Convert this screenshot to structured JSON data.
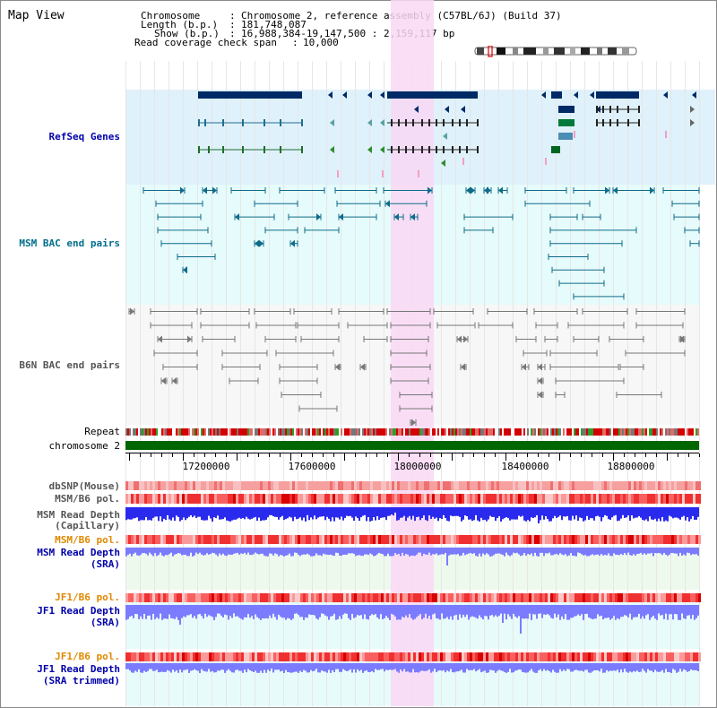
{
  "title": "Map View",
  "info": {
    "chromosome_label": "Chromosome",
    "chromosome_value": "Chromosome 2, reference assembly (C57BL/6J) (Build 37)",
    "length_label": "Length (b.p.)",
    "length_value": "181,748,087",
    "show_label": "Show (b.p.)",
    "show_value": "16,988,384-19,147,500 : 2,159,117 bp",
    "coverage_label": "Read coverage check span",
    "coverage_value": "10,000"
  },
  "tracks": {
    "refseq": "RefSeq Genes",
    "msm_bac": "MSM BAC end pairs",
    "b6n_bac": "B6N BAC end pairs",
    "repeat": "Repeat",
    "chromosome": "chromosome 2",
    "dbsnp": "dbSNP(Mouse)",
    "msm_pol": "MSM/B6 pol.",
    "msm_depth_cap_1": "MSM Read Depth",
    "msm_depth_cap_2": "(Capillary)",
    "msm_pol_sra": "MSM/B6 pol.",
    "msm_depth_sra_1": "MSM Read Depth",
    "msm_depth_sra_2": "(SRA)",
    "jf1_pol": "JF1/B6 pol.",
    "jf1_depth_1": "JF1 Read Depth",
    "jf1_depth_2": "(SRA)",
    "jf1_pol_trim": "JF1/B6 pol.",
    "jf1_depth_trim_1": "JF1 Read Depth",
    "jf1_depth_trim_2": "(SRA trimmed)"
  },
  "axis_ticks": [
    "17200000",
    "17600000",
    "18000000",
    "18400000",
    "18800000"
  ],
  "colors": {
    "refseq_bg": "#dff1fb",
    "msm_bg": "#e6fbfb",
    "highlight": "#f9d8f5",
    "chromosome": "#006600",
    "gene_dark": "#002a66",
    "depth_blue": "#2a2aee",
    "depth_light": "#7b7bff"
  }
}
